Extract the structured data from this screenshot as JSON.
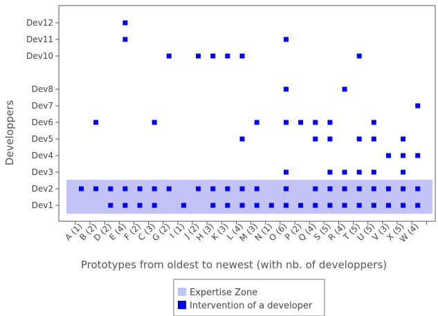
{
  "chart_data": {
    "type": "scatter",
    "xlabel": "Prototypes from oldest to newest (with nb. of developpers)",
    "ylabel": "Developpers",
    "categories": [
      "A (1)",
      "B (2)",
      "D (2)",
      "E (4)",
      "F (2)",
      "C (3)",
      "G (2)",
      "I (1)",
      "J (2)",
      "H (3)",
      "K (3)",
      "L (4)",
      "M (3)",
      "N (1)",
      "O (6)",
      "P (2)",
      "Q (4)",
      "S (5)",
      "R (4)",
      "T (5)",
      "U (5)",
      "V (3)",
      "X (5)",
      "W (4)"
    ],
    "y_levels": [
      "Dev1",
      "Dev2",
      "Dev3",
      "Dev4",
      "Dev5",
      "Dev6",
      "Dev7",
      "Dev8",
      "",
      "Dev10",
      "Dev11",
      "Dev12"
    ],
    "y_tick_labels": [
      "Dev1",
      "Dev2",
      "Dev3",
      "Dev4",
      "Dev5",
      "Dev6",
      "Dev7",
      "Dev8",
      "Dev10",
      "Dev11",
      "Dev12"
    ],
    "expertise_zone": {
      "from": "Dev1",
      "to": "Dev2"
    },
    "legend": {
      "items": [
        {
          "label": "Expertise Zone",
          "color": "#c3c3f8"
        },
        {
          "label": "Intervention of a developer",
          "color": "#0000ee"
        }
      ]
    },
    "points": [
      {
        "x": "A (1)",
        "y": "Dev2"
      },
      {
        "x": "B (2)",
        "y": "Dev2"
      },
      {
        "x": "B (2)",
        "y": "Dev6"
      },
      {
        "x": "D (2)",
        "y": "Dev1"
      },
      {
        "x": "D (2)",
        "y": "Dev2"
      },
      {
        "x": "E (4)",
        "y": "Dev1"
      },
      {
        "x": "E (4)",
        "y": "Dev2"
      },
      {
        "x": "E (4)",
        "y": "Dev11"
      },
      {
        "x": "E (4)",
        "y": "Dev12"
      },
      {
        "x": "F (2)",
        "y": "Dev1"
      },
      {
        "x": "F (2)",
        "y": "Dev2"
      },
      {
        "x": "C (3)",
        "y": "Dev1"
      },
      {
        "x": "C (3)",
        "y": "Dev2"
      },
      {
        "x": "C (3)",
        "y": "Dev6"
      },
      {
        "x": "G (2)",
        "y": "Dev2"
      },
      {
        "x": "G (2)",
        "y": "Dev10"
      },
      {
        "x": "I (1)",
        "y": "Dev1"
      },
      {
        "x": "J (2)",
        "y": "Dev2"
      },
      {
        "x": "J (2)",
        "y": "Dev10"
      },
      {
        "x": "H (3)",
        "y": "Dev1"
      },
      {
        "x": "H (3)",
        "y": "Dev2"
      },
      {
        "x": "H (3)",
        "y": "Dev10"
      },
      {
        "x": "K (3)",
        "y": "Dev1"
      },
      {
        "x": "K (3)",
        "y": "Dev2"
      },
      {
        "x": "K (3)",
        "y": "Dev10"
      },
      {
        "x": "L (4)",
        "y": "Dev1"
      },
      {
        "x": "L (4)",
        "y": "Dev2"
      },
      {
        "x": "L (4)",
        "y": "Dev5"
      },
      {
        "x": "L (4)",
        "y": "Dev10"
      },
      {
        "x": "M (3)",
        "y": "Dev1"
      },
      {
        "x": "M (3)",
        "y": "Dev2"
      },
      {
        "x": "M (3)",
        "y": "Dev6"
      },
      {
        "x": "N (1)",
        "y": "Dev1"
      },
      {
        "x": "O (6)",
        "y": "Dev1"
      },
      {
        "x": "O (6)",
        "y": "Dev2"
      },
      {
        "x": "O (6)",
        "y": "Dev3"
      },
      {
        "x": "O (6)",
        "y": "Dev6"
      },
      {
        "x": "O (6)",
        "y": "Dev8"
      },
      {
        "x": "O (6)",
        "y": "Dev11"
      },
      {
        "x": "P (2)",
        "y": "Dev1"
      },
      {
        "x": "P (2)",
        "y": "Dev6"
      },
      {
        "x": "Q (4)",
        "y": "Dev1"
      },
      {
        "x": "Q (4)",
        "y": "Dev2"
      },
      {
        "x": "Q (4)",
        "y": "Dev5"
      },
      {
        "x": "Q (4)",
        "y": "Dev6"
      },
      {
        "x": "S (5)",
        "y": "Dev1"
      },
      {
        "x": "S (5)",
        "y": "Dev2"
      },
      {
        "x": "S (5)",
        "y": "Dev3"
      },
      {
        "x": "S (5)",
        "y": "Dev5"
      },
      {
        "x": "S (5)",
        "y": "Dev6"
      },
      {
        "x": "R (4)",
        "y": "Dev1"
      },
      {
        "x": "R (4)",
        "y": "Dev2"
      },
      {
        "x": "R (4)",
        "y": "Dev3"
      },
      {
        "x": "R (4)",
        "y": "Dev8"
      },
      {
        "x": "T (5)",
        "y": "Dev1"
      },
      {
        "x": "T (5)",
        "y": "Dev2"
      },
      {
        "x": "T (5)",
        "y": "Dev3"
      },
      {
        "x": "T (5)",
        "y": "Dev5"
      },
      {
        "x": "T (5)",
        "y": "Dev10"
      },
      {
        "x": "U (5)",
        "y": "Dev1"
      },
      {
        "x": "U (5)",
        "y": "Dev2"
      },
      {
        "x": "U (5)",
        "y": "Dev3"
      },
      {
        "x": "U (5)",
        "y": "Dev5"
      },
      {
        "x": "U (5)",
        "y": "Dev6"
      },
      {
        "x": "V (3)",
        "y": "Dev1"
      },
      {
        "x": "V (3)",
        "y": "Dev2"
      },
      {
        "x": "V (3)",
        "y": "Dev4"
      },
      {
        "x": "X (5)",
        "y": "Dev1"
      },
      {
        "x": "X (5)",
        "y": "Dev2"
      },
      {
        "x": "X (5)",
        "y": "Dev3"
      },
      {
        "x": "X (5)",
        "y": "Dev4"
      },
      {
        "x": "X (5)",
        "y": "Dev5"
      },
      {
        "x": "W (4)",
        "y": "Dev1"
      },
      {
        "x": "W (4)",
        "y": "Dev2"
      },
      {
        "x": "W (4)",
        "y": "Dev4"
      },
      {
        "x": "W (4)",
        "y": "Dev7"
      }
    ]
  }
}
